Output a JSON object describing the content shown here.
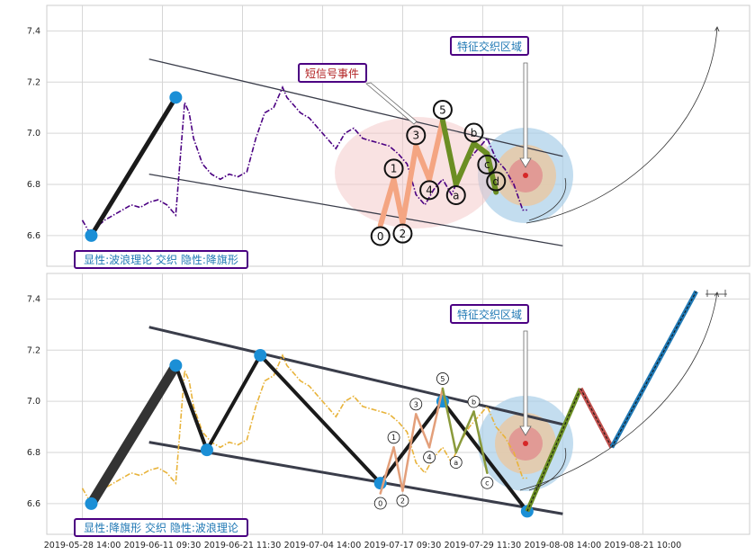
{
  "chart_data": [
    {
      "type": "line",
      "panel": "top",
      "ylim": [
        6.48,
        7.5
      ],
      "y_ticks": [
        "6.6",
        "6.8",
        "7.0",
        "7.2",
        "7.4"
      ],
      "x_tick_labels": [
        "2019-05-28 14:00",
        "2019-06-11 09:30",
        "2019-06-21 11:30",
        "2019-07-04 14:00",
        "2019-07-17 09:30",
        "2019-07-29 11:30",
        "2019-08-08 14:00",
        "2019-08-21 10:00"
      ],
      "grid": true,
      "series": [
        {
          "style": "dash-dot",
          "color": "#4b0082",
          "x": [
            0,
            2,
            3,
            5,
            7,
            9,
            11,
            13,
            15,
            17,
            19,
            21,
            23,
            24,
            25,
            27,
            29,
            31,
            33,
            35,
            37,
            39,
            41,
            43,
            45,
            46,
            47,
            49,
            51,
            53,
            55,
            57,
            59,
            61,
            63,
            65,
            67,
            69,
            71,
            73,
            75,
            77,
            79,
            81,
            83,
            85,
            87,
            89,
            91,
            93,
            95,
            97,
            99,
            100
          ],
          "y": [
            6.66,
            6.6,
            6.63,
            6.66,
            6.68,
            6.7,
            6.72,
            6.71,
            6.73,
            6.74,
            6.72,
            6.68,
            7.12,
            7.08,
            6.98,
            6.88,
            6.84,
            6.82,
            6.84,
            6.83,
            6.85,
            6.98,
            7.08,
            7.1,
            7.18,
            7.14,
            7.12,
            7.08,
            7.06,
            7.02,
            6.98,
            6.94,
            7.0,
            7.02,
            6.98,
            6.97,
            6.96,
            6.95,
            6.92,
            6.88,
            6.76,
            6.72,
            6.78,
            6.82,
            6.76,
            6.84,
            6.9,
            6.94,
            6.98,
            6.9,
            6.86,
            6.8,
            6.7,
            6.7
          ]
        }
      ],
      "channel": [
        {
          "x": [
            15,
            108
          ],
          "y": [
            7.29,
            6.91
          ]
        },
        {
          "x": [
            15,
            108
          ],
          "y": [
            6.84,
            6.56
          ]
        }
      ],
      "thick_segment": {
        "x": [
          2,
          21
        ],
        "y": [
          6.6,
          7.14
        ],
        "points": true
      },
      "wave": {
        "labels": [
          "0",
          "1",
          "2",
          "3",
          "4",
          "5",
          "a",
          "b",
          "c",
          "d"
        ],
        "x": [
          67,
          70,
          72,
          75,
          78,
          81,
          84,
          88,
          91,
          93
        ],
        "y": [
          6.64,
          6.82,
          6.65,
          6.95,
          6.82,
          7.05,
          6.8,
          6.96,
          6.92,
          6.77
        ],
        "impulse_color": "#f4a582",
        "correction_color": "#6b8e23"
      },
      "annotations": [
        {
          "text": "短信号事件",
          "color": "#b22222"
        },
        {
          "text": "特征交织区域",
          "color": "#1f78b4"
        },
        {
          "text": "显性:波浪理论 交织 隐性:降旗形",
          "color": "#1f78b4"
        }
      ]
    },
    {
      "type": "line",
      "panel": "bottom",
      "ylim": [
        6.48,
        7.5
      ],
      "y_ticks": [
        "6.6",
        "6.8",
        "7.0",
        "7.2",
        "7.4"
      ],
      "x_tick_labels": [
        "2019-05-28 14:00",
        "2019-06-11 09:30",
        "2019-06-21 11:30",
        "2019-07-04 14:00",
        "2019-07-17 09:30",
        "2019-07-29 11:30",
        "2019-08-08 14:00",
        "2019-08-21 10:00"
      ],
      "grid": true,
      "series": [
        {
          "style": "dash-dot",
          "color": "#e8b33a",
          "x": [
            0,
            2,
            3,
            5,
            7,
            9,
            11,
            13,
            15,
            17,
            19,
            21,
            23,
            24,
            25,
            27,
            29,
            31,
            33,
            35,
            37,
            39,
            41,
            43,
            45,
            46,
            47,
            49,
            51,
            53,
            55,
            57,
            59,
            61,
            63,
            65,
            67,
            69,
            71,
            73,
            75,
            77,
            79,
            81,
            83,
            85,
            87,
            89,
            91,
            93,
            95,
            97,
            99,
            100
          ],
          "y": [
            6.66,
            6.6,
            6.63,
            6.66,
            6.68,
            6.7,
            6.72,
            6.71,
            6.73,
            6.74,
            6.72,
            6.68,
            7.12,
            7.08,
            6.98,
            6.88,
            6.84,
            6.82,
            6.84,
            6.83,
            6.85,
            6.98,
            7.08,
            7.1,
            7.18,
            7.14,
            7.12,
            7.08,
            7.06,
            7.02,
            6.98,
            6.94,
            7.0,
            7.02,
            6.98,
            6.97,
            6.96,
            6.95,
            6.92,
            6.88,
            6.76,
            6.72,
            6.78,
            6.82,
            6.76,
            6.84,
            6.9,
            6.94,
            6.98,
            6.9,
            6.86,
            6.8,
            6.7,
            6.7
          ]
        }
      ],
      "channel": [
        {
          "x": [
            15,
            108
          ],
          "y": [
            7.29,
            6.91
          ]
        },
        {
          "x": [
            15,
            108
          ],
          "y": [
            6.84,
            6.56
          ]
        }
      ],
      "zigzag": {
        "x": [
          2,
          21,
          28,
          40,
          67,
          81,
          100
        ],
        "y": [
          6.6,
          7.14,
          6.81,
          7.18,
          6.68,
          7.0,
          6.57
        ]
      },
      "wave": {
        "labels": [
          "0",
          "1",
          "2",
          "3",
          "4",
          "5",
          "a",
          "b",
          "c"
        ],
        "x": [
          67,
          70,
          72,
          75,
          78,
          81,
          84,
          88,
          91
        ],
        "y": [
          6.64,
          6.82,
          6.65,
          6.95,
          6.82,
          7.05,
          6.8,
          6.96,
          6.72
        ],
        "impulse_color": "#e39f7a",
        "correction_color": "#8a9a3b"
      },
      "projection": {
        "x": [
          100,
          112,
          119,
          138
        ],
        "y": [
          6.57,
          7.05,
          6.82,
          7.43
        ],
        "colors": [
          "#6b8e23",
          "#c0504d",
          "#1f78b4"
        ]
      },
      "annotations": [
        {
          "text": "特征交织区域",
          "color": "#1f78b4"
        },
        {
          "text": "显性:降旗形 交织 隐性:波浪理论",
          "color": "#1f78b4"
        }
      ]
    }
  ]
}
